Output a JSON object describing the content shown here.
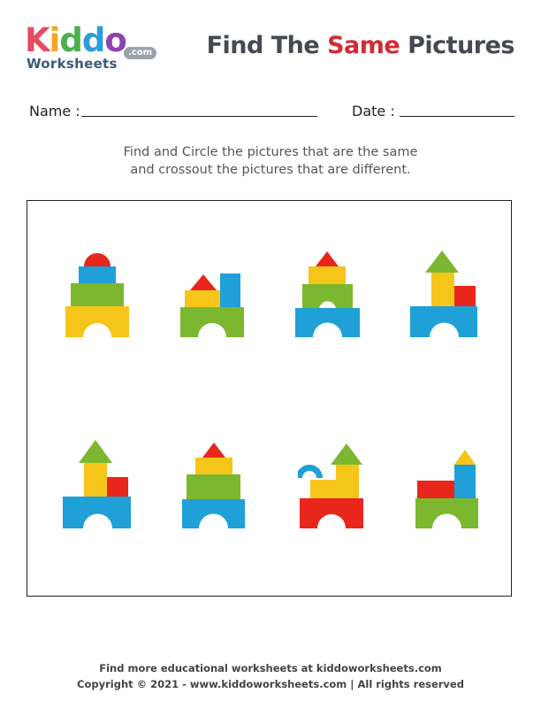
{
  "logo": {
    "letters": [
      "K",
      "i",
      "d",
      "d",
      "o"
    ],
    "letter_colors": [
      "#e84a5f",
      "#f5a623",
      "#4caf50",
      "#2d9cdb",
      "#8e44ad"
    ],
    "sub": "Worksheets",
    "com": ".com"
  },
  "title": {
    "prefix": "Find The ",
    "highlight": "Same",
    "suffix": " Pictures"
  },
  "form": {
    "name_label": "Name :",
    "date_label": "Date :"
  },
  "instructions": {
    "line1": "Find and Circle the pictures that are the same",
    "line2": "and crossout the pictures that are different."
  },
  "pictures": [
    {
      "id": 1,
      "description": "Tower: yellow arch, green, smaller green, blue, red dome"
    },
    {
      "id": 2,
      "description": "Green arch with yellow block, red triangle, blue pillar"
    },
    {
      "id": 3,
      "description": "Blue arch, green arch, yellow block, red triangle"
    },
    {
      "id": 4,
      "description": "Blue arch, yellow pillar, red block, green triangle"
    },
    {
      "id": 5,
      "description": "Blue arch, yellow pillar, red block, green triangle"
    },
    {
      "id": 6,
      "description": "Blue base, green, yellow, red triangle"
    },
    {
      "id": 7,
      "description": "Red arch, yellow blocks, blue dome, green triangle"
    },
    {
      "id": 8,
      "description": "Green arch, red block, blue pillar, yellow triangle"
    }
  ],
  "colors": {
    "red": "#e8261c",
    "yellow": "#f6c51a",
    "green": "#7cb82f",
    "blue": "#1fa0d6",
    "title_highlight": "#d42a34"
  },
  "footer": {
    "line1": "Find more educational worksheets at kiddoworksheets.com",
    "line2": "Copyright © 2021 - www.kiddoworksheets.com  |  All rights reserved"
  }
}
